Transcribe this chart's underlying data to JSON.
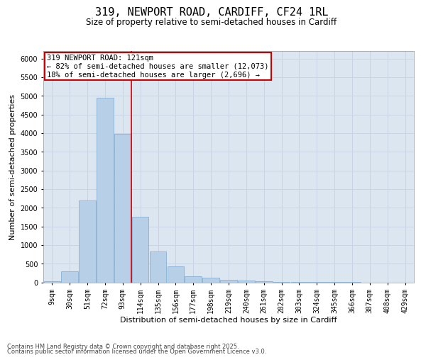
{
  "title_line1": "319, NEWPORT ROAD, CARDIFF, CF24 1RL",
  "title_line2": "Size of property relative to semi-detached houses in Cardiff",
  "xlabel": "Distribution of semi-detached houses by size in Cardiff",
  "ylabel": "Number of semi-detached properties",
  "categories": [
    "9sqm",
    "30sqm",
    "51sqm",
    "72sqm",
    "93sqm",
    "114sqm",
    "135sqm",
    "156sqm",
    "177sqm",
    "198sqm",
    "219sqm",
    "240sqm",
    "261sqm",
    "282sqm",
    "303sqm",
    "324sqm",
    "345sqm",
    "366sqm",
    "387sqm",
    "408sqm",
    "429sqm"
  ],
  "values": [
    25,
    300,
    2200,
    4950,
    3980,
    1750,
    820,
    430,
    165,
    115,
    60,
    45,
    25,
    15,
    8,
    5,
    4,
    2,
    1,
    1,
    1
  ],
  "bar_color": "#b8cfe8",
  "bar_edge_color": "#7aa8d0",
  "grid_color": "#c8d4e4",
  "background_color": "#dce6f0",
  "vline_color": "#cc0000",
  "annotation_box_text": "319 NEWPORT ROAD: 121sqm\n← 82% of semi-detached houses are smaller (12,073)\n18% of semi-detached houses are larger (2,696) →",
  "annotation_box_color": "#cc0000",
  "ylim": [
    0,
    6200
  ],
  "yticks": [
    0,
    500,
    1000,
    1500,
    2000,
    2500,
    3000,
    3500,
    4000,
    4500,
    5000,
    5500,
    6000
  ],
  "footnote1": "Contains HM Land Registry data © Crown copyright and database right 2025.",
  "footnote2": "Contains public sector information licensed under the Open Government Licence v3.0.",
  "title_fontsize": 11,
  "subtitle_fontsize": 8.5,
  "axis_label_fontsize": 8,
  "tick_fontsize": 7,
  "annotation_fontsize": 7.5,
  "footnote_fontsize": 6
}
